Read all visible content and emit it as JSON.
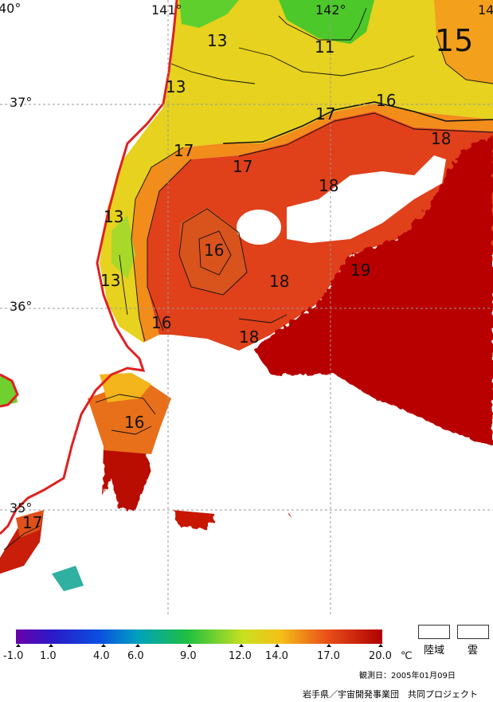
{
  "map": {
    "lon_labels": [
      "40°",
      "141°",
      "142°",
      "14"
    ],
    "lat_labels": [
      "37°",
      "36°",
      "35°"
    ],
    "contour_labels": [
      "13",
      "11",
      "15",
      "13",
      "16",
      "17",
      "18",
      "17",
      "17",
      "18",
      "13",
      "16",
      "19",
      "13",
      "18",
      "16",
      "18",
      "16",
      "17"
    ]
  },
  "legend": {
    "ticks": [
      "-1.0",
      "1.0",
      "4.0",
      "6.0",
      "9.0",
      "12.0",
      "14.0",
      "17.0",
      "20.0"
    ],
    "unit": "℃",
    "land_label": "陸域",
    "cloud_label": "雲",
    "date": "観測日：2005年01月09日",
    "credit": "岩手県／宇宙開発事業団　共同プロジェクト"
  },
  "colors": {
    "land": "#ffffff",
    "coast": "#e02020",
    "t11": "#37c52a",
    "t13": "#d8e020",
    "t15": "#f5a21a",
    "t17": "#e0401a",
    "t19": "#b80000",
    "grid": "#9a9a9a"
  }
}
